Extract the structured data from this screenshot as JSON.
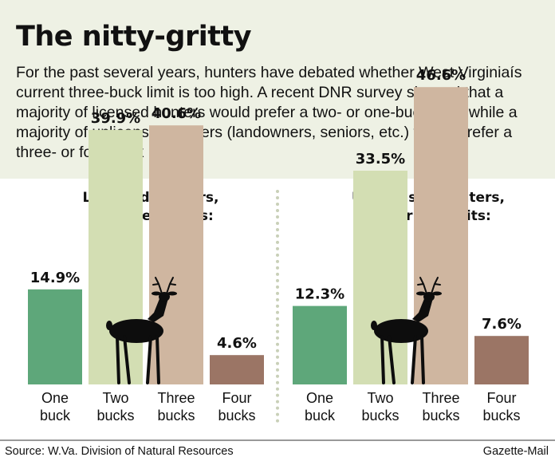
{
  "header": {
    "title": "The nitty-gritty",
    "intro": "For the past several years, hunters have debated whether West Virginiaís current three-buck limit is too high. A recent DNR survey showed that a majority of licensed hunters would prefer a two- or one-buck limit, while a majority of unlicensed hunters (landowners, seniors, etc.) would prefer a three- or four-buck limit."
  },
  "colors": {
    "one_buck": "#5ea77a",
    "two_bucks": "#d3deb3",
    "three_bucks": "#cfb6a0",
    "four_bucks": "#9b7565",
    "background": "#eef1e4",
    "deer": "#0d0d0d"
  },
  "icons": [
    "deer-silhouette-icon"
  ],
  "chart_data": [
    {
      "type": "bar",
      "title": "Licensed hunters, perferred limits:",
      "title_lines": [
        "Licensed hunters,",
        "perferred limits:"
      ],
      "categories": [
        "One buck",
        "Two bucks",
        "Three bucks",
        "Four bucks"
      ],
      "category_lines": [
        [
          "One",
          "buck"
        ],
        [
          "Two",
          "bucks"
        ],
        [
          "Three",
          "bucks"
        ],
        [
          "Four",
          "bucks"
        ]
      ],
      "values": [
        14.9,
        39.9,
        40.6,
        4.6
      ],
      "value_labels": [
        "14.9%",
        "39.9%",
        "40.6%",
        "4.6%"
      ],
      "ylim": [
        0,
        50
      ],
      "grid": false
    },
    {
      "type": "bar",
      "title": "Unlicensed hunters, perferred limits:",
      "title_lines": [
        "Unlicensed hunters,",
        "perferred limits:"
      ],
      "categories": [
        "One buck",
        "Two bucks",
        "Three bucks",
        "Four bucks"
      ],
      "category_lines": [
        [
          "One",
          "buck"
        ],
        [
          "Two",
          "bucks"
        ],
        [
          "Three",
          "bucks"
        ],
        [
          "Four",
          "bucks"
        ]
      ],
      "values": [
        12.3,
        33.5,
        46.6,
        7.6
      ],
      "value_labels": [
        "12.3%",
        "33.5%",
        "46.6%",
        "7.6%"
      ],
      "ylim": [
        0,
        50
      ],
      "grid": false
    }
  ],
  "footer": {
    "source": "Source: W.Va. Division of Natural Resources",
    "credit": "Gazette-Mail"
  }
}
